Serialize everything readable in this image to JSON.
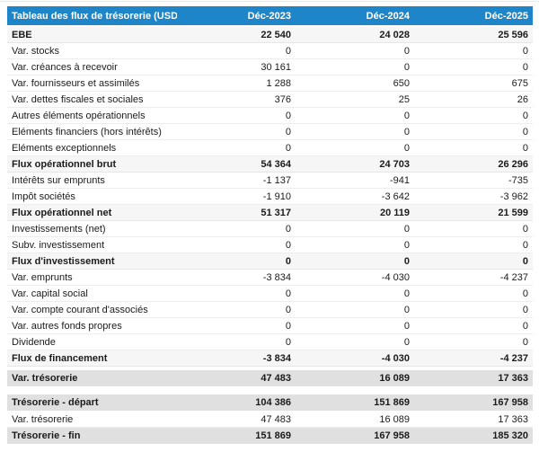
{
  "table": {
    "title": "Tableau des flux de trésorerie (USD)",
    "columns": [
      "Déc-2023",
      "Déc-2024",
      "Déc-2025"
    ],
    "colors": {
      "header_bg": "#1e86c8",
      "header_text": "#ffffff",
      "subtotal_bg": "#f6f6f6",
      "total_bg": "#e0e0e0"
    },
    "rows": [
      {
        "label": "EBE",
        "values": [
          "22 540",
          "24 028",
          "25 596"
        ],
        "style": "subtotal"
      },
      {
        "label": "Var. stocks",
        "values": [
          "0",
          "0",
          "0"
        ],
        "style": "normal"
      },
      {
        "label": "Var. créances à recevoir",
        "values": [
          "30 161",
          "0",
          "0"
        ],
        "style": "normal"
      },
      {
        "label": "Var. fournisseurs et assimilés",
        "values": [
          "1 288",
          "650",
          "675"
        ],
        "style": "normal"
      },
      {
        "label": "Var. dettes fiscales et sociales",
        "values": [
          "376",
          "25",
          "26"
        ],
        "style": "normal"
      },
      {
        "label": "Autres éléments opérationnels",
        "values": [
          "0",
          "0",
          "0"
        ],
        "style": "normal"
      },
      {
        "label": "Eléments financiers (hors intérêts)",
        "values": [
          "0",
          "0",
          "0"
        ],
        "style": "normal"
      },
      {
        "label": "Eléments exceptionnels",
        "values": [
          "0",
          "0",
          "0"
        ],
        "style": "normal"
      },
      {
        "label": "Flux opérationnel brut",
        "values": [
          "54 364",
          "24 703",
          "26 296"
        ],
        "style": "subtotal"
      },
      {
        "label": "Intérêts sur emprunts",
        "values": [
          "-1 137",
          "-941",
          "-735"
        ],
        "style": "normal"
      },
      {
        "label": "Impôt sociétés",
        "values": [
          "-1 910",
          "-3 642",
          "-3 962"
        ],
        "style": "normal"
      },
      {
        "label": "Flux opérationnel net",
        "values": [
          "51 317",
          "20 119",
          "21 599"
        ],
        "style": "subtotal"
      },
      {
        "label": "Investissements (net)",
        "values": [
          "0",
          "0",
          "0"
        ],
        "style": "normal"
      },
      {
        "label": "Subv. investissement",
        "values": [
          "0",
          "0",
          "0"
        ],
        "style": "normal"
      },
      {
        "label": "Flux d'investissement",
        "values": [
          "0",
          "0",
          "0"
        ],
        "style": "subtotal"
      },
      {
        "label": "Var. emprunts",
        "values": [
          "-3 834",
          "-4 030",
          "-4 237"
        ],
        "style": "normal"
      },
      {
        "label": "Var. capital social",
        "values": [
          "0",
          "0",
          "0"
        ],
        "style": "normal"
      },
      {
        "label": "Var. compte courant d'associés",
        "values": [
          "0",
          "0",
          "0"
        ],
        "style": "normal"
      },
      {
        "label": "Var. autres fonds propres",
        "values": [
          "0",
          "0",
          "0"
        ],
        "style": "normal"
      },
      {
        "label": "Dividende",
        "values": [
          "0",
          "0",
          "0"
        ],
        "style": "normal"
      },
      {
        "label": "Flux de financement",
        "values": [
          "-3 834",
          "-4 030",
          "-4 237"
        ],
        "style": "subtotal"
      },
      {
        "label": "Var. trésorerie",
        "values": [
          "47 483",
          "16 089",
          "17 363"
        ],
        "style": "total",
        "gap_before": "sm"
      },
      {
        "label": "Trésorerie - départ",
        "values": [
          "104 386",
          "151 869",
          "167 958"
        ],
        "style": "total",
        "gap_before": "lg"
      },
      {
        "label": "Var. trésorerie",
        "values": [
          "47 483",
          "16 089",
          "17 363"
        ],
        "style": "normal"
      },
      {
        "label": "Trésorerie - fin",
        "values": [
          "151 869",
          "167 958",
          "185 320"
        ],
        "style": "total"
      }
    ]
  }
}
